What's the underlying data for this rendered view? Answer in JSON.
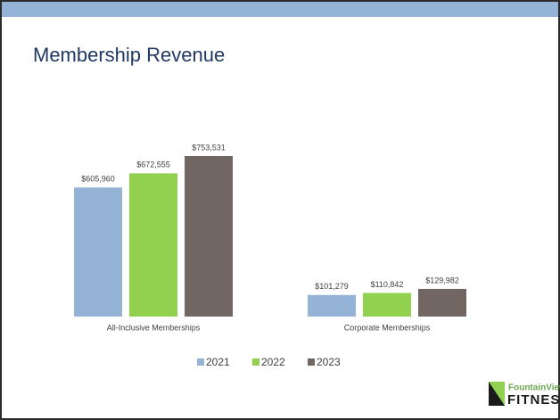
{
  "chart_data": {
    "type": "bar",
    "title": "Membership Revenue",
    "categories": [
      "All-Inclusive Memberships",
      "Corporate Memberships"
    ],
    "series": [
      {
        "name": "2021",
        "color": "#95b3d7",
        "values": [
          605960,
          101279
        ],
        "value_labels": [
          "$605,960",
          "$101,279"
        ]
      },
      {
        "name": "2022",
        "color": "#92d050",
        "values": [
          672555,
          110842
        ],
        "value_labels": [
          "$672,555",
          "$110,842"
        ]
      },
      {
        "name": "2023",
        "color": "#726662",
        "values": [
          753531,
          129982
        ],
        "value_labels": [
          "$753,531",
          "$129,982"
        ]
      }
    ]
  },
  "logo": {
    "line1": "FountainView",
    "line2": "FITNESS"
  }
}
